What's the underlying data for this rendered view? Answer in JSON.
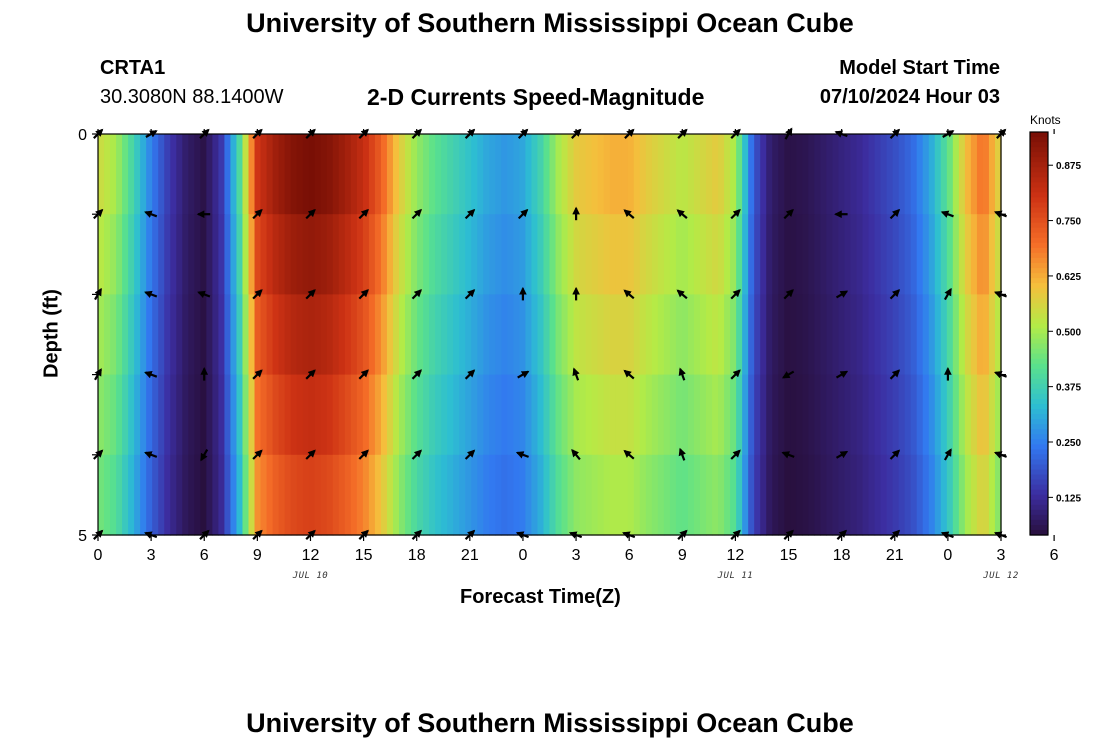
{
  "header": {
    "title": "University of Southern Mississippi Ocean Cube",
    "station_id": "CRTA1",
    "station_coords": "30.3080N  88.1400W",
    "subtitle": "2-D Currents Speed-Magnitude",
    "model_start_label": "Model Start Time",
    "model_start_value": "07/10/2024 Hour 03"
  },
  "footer": {
    "title_repeat": "University of Southern Mississippi Ocean Cube"
  },
  "chart_data": {
    "type": "heatmap",
    "title": "2-D Currents Speed-Magnitude",
    "xlabel": "Forecast Time(Z)",
    "ylabel": "Depth (ft)",
    "colorbar_label": "Knots",
    "colorbar_ticks": [
      "0.125",
      "0.250",
      "0.375",
      "0.500",
      "0.625",
      "0.750",
      "0.875"
    ],
    "colorbar_range": [
      0.04,
      0.95
    ],
    "x_hours_from_start": [
      0,
      51
    ],
    "x_tick_labels": [
      "0",
      "3",
      "6",
      "9",
      "12",
      "15",
      "18",
      "21",
      "0",
      "3",
      "6",
      "9",
      "12",
      "15",
      "18",
      "21",
      "0",
      "3",
      "6"
    ],
    "date_labels": [
      {
        "text": "JUL 10",
        "at_hour": 12
      },
      {
        "text": "JUL 11",
        "at_hour": 36
      },
      {
        "text": "JUL 12",
        "at_hour": 51
      }
    ],
    "y_range": [
      0,
      5
    ],
    "y_tick_labels": [
      "0",
      "5"
    ],
    "depth_rows": 5,
    "speed_profile": [
      [
        0,
        0.55
      ],
      [
        1,
        0.5
      ],
      [
        2,
        0.38
      ],
      [
        3,
        0.25
      ],
      [
        4,
        0.15
      ],
      [
        5,
        0.08
      ],
      [
        6,
        0.05
      ],
      [
        7,
        0.15
      ],
      [
        8,
        0.4
      ],
      [
        9,
        0.8
      ],
      [
        10,
        0.88
      ],
      [
        11,
        0.93
      ],
      [
        12,
        0.95
      ],
      [
        13,
        0.93
      ],
      [
        14,
        0.88
      ],
      [
        15,
        0.82
      ],
      [
        16,
        0.72
      ],
      [
        17,
        0.58
      ],
      [
        18,
        0.48
      ],
      [
        19,
        0.42
      ],
      [
        20,
        0.38
      ],
      [
        21,
        0.34
      ],
      [
        22,
        0.3
      ],
      [
        23,
        0.28
      ],
      [
        24,
        0.3
      ],
      [
        25,
        0.38
      ],
      [
        26,
        0.5
      ],
      [
        27,
        0.58
      ],
      [
        28,
        0.6
      ],
      [
        29,
        0.62
      ],
      [
        30,
        0.62
      ],
      [
        31,
        0.58
      ],
      [
        32,
        0.55
      ],
      [
        33,
        0.52
      ],
      [
        34,
        0.55
      ],
      [
        35,
        0.58
      ],
      [
        36,
        0.5
      ],
      [
        37,
        0.2
      ],
      [
        38,
        0.08
      ],
      [
        39,
        0.05
      ],
      [
        40,
        0.06
      ],
      [
        41,
        0.08
      ],
      [
        42,
        0.1
      ],
      [
        43,
        0.12
      ],
      [
        44,
        0.15
      ],
      [
        45,
        0.18
      ],
      [
        46,
        0.22
      ],
      [
        47,
        0.3
      ],
      [
        48,
        0.42
      ],
      [
        49,
        0.6
      ],
      [
        50,
        0.7
      ],
      [
        51,
        0.55
      ]
    ],
    "arrow_rows_depth": [
      0,
      1,
      2,
      3,
      4,
      5
    ],
    "arrow_hours": [
      0,
      3,
      6,
      9,
      12,
      15,
      18,
      21,
      24,
      27,
      30,
      33,
      36,
      39,
      42,
      45,
      48,
      51
    ],
    "arrow_direction_deg": [
      [
        315,
        330,
        315,
        315,
        315,
        315,
        315,
        315,
        315,
        315,
        315,
        315,
        315,
        300,
        200,
        315,
        330,
        315
      ],
      [
        315,
        200,
        180,
        315,
        315,
        315,
        315,
        315,
        315,
        270,
        220,
        220,
        315,
        315,
        180,
        315,
        200,
        200
      ],
      [
        300,
        200,
        200,
        315,
        315,
        315,
        315,
        315,
        270,
        270,
        220,
        220,
        315,
        315,
        330,
        315,
        300,
        200
      ],
      [
        300,
        200,
        270,
        315,
        315,
        315,
        315,
        315,
        330,
        250,
        220,
        250,
        315,
        150,
        330,
        315,
        270,
        200
      ],
      [
        315,
        200,
        120,
        315,
        315,
        315,
        315,
        315,
        200,
        230,
        220,
        250,
        315,
        200,
        330,
        315,
        300,
        200
      ],
      [
        315,
        200,
        315,
        315,
        315,
        315,
        315,
        315,
        200,
        200,
        200,
        315,
        315,
        315,
        315,
        315,
        200,
        200
      ]
    ]
  }
}
